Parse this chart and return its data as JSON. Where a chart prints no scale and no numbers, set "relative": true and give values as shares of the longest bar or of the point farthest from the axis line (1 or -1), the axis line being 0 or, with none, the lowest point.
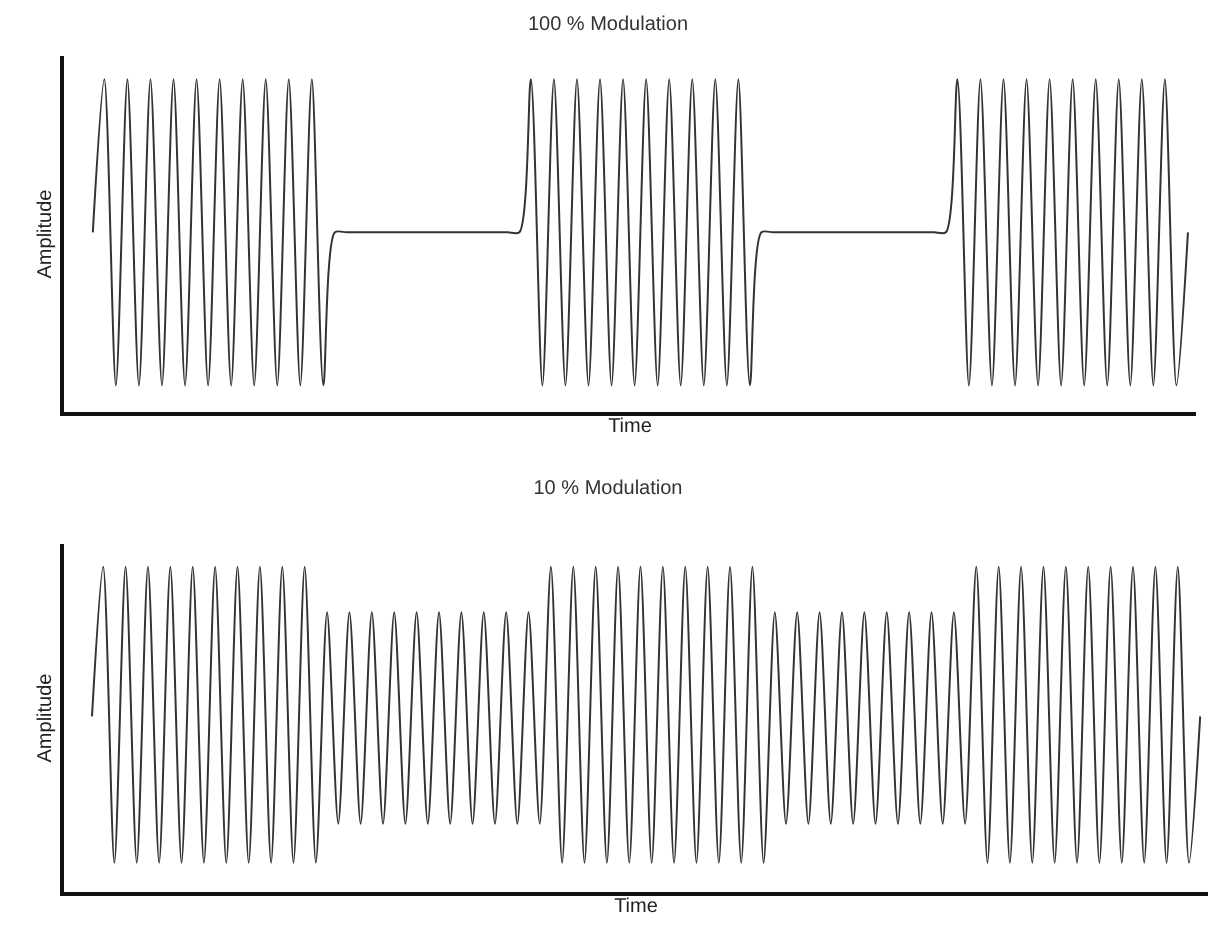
{
  "chart_data": [
    {
      "type": "line",
      "title": "100 % Modulation",
      "xlabel": "Time",
      "ylabel": "Amplitude",
      "relative": true,
      "color": "#333333",
      "categories": [
        null,
        null,
        null,
        null,
        null,
        null,
        null,
        null,
        null,
        null,
        null,
        null,
        null,
        null,
        null,
        null,
        null,
        null,
        null,
        null,
        null,
        null,
        null,
        null,
        null,
        null,
        null,
        null,
        null,
        null,
        null,
        null,
        null,
        null,
        null,
        null,
        null,
        null,
        null,
        null,
        null,
        null,
        null,
        null,
        null,
        null,
        null,
        null,
        null,
        null,
        null,
        null,
        null,
        null,
        null,
        null,
        null,
        null,
        null,
        null,
        null,
        null,
        null,
        null,
        null,
        null,
        null,
        null,
        null,
        null,
        null,
        null,
        null,
        null,
        null,
        null,
        null,
        null,
        null,
        null,
        null,
        null,
        null,
        null,
        null,
        null,
        null,
        null,
        null,
        null,
        null,
        null,
        null,
        null,
        null,
        null
      ],
      "values": [
        0.54,
        1,
        0.08,
        1,
        0.08,
        1,
        0.08,
        1,
        0.08,
        1,
        0.08,
        1,
        0.08,
        1,
        0.08,
        1,
        0.08,
        1,
        0.08,
        1,
        0.08,
        0.54,
        0.54,
        0.54,
        0.54,
        0.54,
        0.54,
        0.54,
        0.54,
        0.54,
        0.54,
        0.54,
        0.54,
        0.54,
        0.54,
        0.54,
        0.54,
        0.54,
        1,
        0.08,
        1,
        0.08,
        1,
        0.08,
        1,
        0.08,
        1,
        0.08,
        1,
        0.08,
        1,
        0.08,
        1,
        0.08,
        1,
        0.08,
        1,
        0.08,
        0.54,
        0.54,
        0.54,
        0.54,
        0.54,
        0.54,
        0.54,
        0.54,
        0.54,
        0.54,
        0.54,
        0.54,
        0.54,
        0.54,
        0.54,
        0.54,
        0.54,
        1,
        0.08,
        1,
        0.08,
        1,
        0.08,
        1,
        0.08,
        1,
        0.08,
        1,
        0.08,
        1,
        0.08,
        1,
        0.08,
        1,
        0.08,
        1,
        0.08,
        0.54
      ]
    },
    {
      "type": "line",
      "title": "10 % Modulation",
      "xlabel": "Time",
      "ylabel": "Amplitude",
      "relative": true,
      "color": "#333333",
      "categories": [
        null,
        null,
        null,
        null,
        null,
        null,
        null,
        null,
        null,
        null,
        null,
        null,
        null,
        null,
        null,
        null,
        null,
        null,
        null,
        null,
        null,
        null,
        null,
        null,
        null,
        null,
        null,
        null,
        null,
        null,
        null,
        null,
        null,
        null,
        null,
        null,
        null,
        null,
        null,
        null,
        null,
        null,
        null,
        null,
        null,
        null,
        null,
        null,
        null,
        null,
        null,
        null,
        null,
        null,
        null,
        null,
        null,
        null,
        null,
        null,
        null,
        null,
        null,
        null,
        null,
        null,
        null,
        null,
        null,
        null,
        null,
        null,
        null,
        null,
        null,
        null,
        null,
        null,
        null,
        null,
        null,
        null,
        null,
        null,
        null,
        null,
        null,
        null,
        null,
        null,
        null,
        null,
        null,
        null,
        null,
        null,
        null,
        null,
        null,
        null
      ],
      "values": [
        0.54,
        1,
        0.09,
        1,
        0.09,
        1,
        0.09,
        1,
        0.09,
        1,
        0.09,
        1,
        0.09,
        1,
        0.09,
        1,
        0.09,
        1,
        0.09,
        1,
        0.09,
        0.86,
        0.21,
        0.86,
        0.21,
        0.86,
        0.21,
        0.86,
        0.21,
        0.86,
        0.21,
        0.86,
        0.21,
        0.86,
        0.21,
        0.86,
        0.21,
        0.86,
        0.21,
        0.86,
        0.21,
        1,
        0.09,
        1,
        0.09,
        1,
        0.09,
        1,
        0.09,
        1,
        0.09,
        1,
        0.09,
        1,
        0.09,
        1,
        0.09,
        1,
        0.09,
        1,
        0.09,
        0.86,
        0.21,
        0.86,
        0.21,
        0.86,
        0.21,
        0.86,
        0.21,
        0.86,
        0.21,
        0.86,
        0.21,
        0.86,
        0.21,
        0.86,
        0.21,
        0.86,
        0.21,
        1,
        0.09,
        1,
        0.09,
        1,
        0.09,
        1,
        0.09,
        1,
        0.09,
        1,
        0.09,
        1,
        0.09,
        1,
        0.09,
        1,
        0.09,
        1,
        0.09,
        0.54
      ]
    }
  ]
}
